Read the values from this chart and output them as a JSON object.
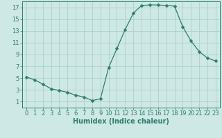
{
  "x": [
    0,
    1,
    2,
    3,
    4,
    5,
    6,
    7,
    8,
    9,
    10,
    11,
    12,
    13,
    14,
    15,
    16,
    17,
    18,
    19,
    20,
    21,
    22,
    23
  ],
  "y": [
    5.2,
    4.7,
    4.0,
    3.2,
    2.9,
    2.6,
    2.1,
    1.8,
    1.2,
    1.5,
    6.8,
    10.0,
    13.2,
    16.0,
    17.3,
    17.4,
    17.4,
    17.3,
    17.2,
    13.7,
    11.3,
    9.5,
    8.4,
    7.9
  ],
  "line_color": "#2e7d6d",
  "marker": "D",
  "marker_size": 2.5,
  "bg_color": "#cde8e5",
  "grid_color": "#aed0cb",
  "xlabel": "Humidex (Indice chaleur)",
  "xlim": [
    -0.5,
    23.5
  ],
  "ylim": [
    0,
    18
  ],
  "yticks": [
    1,
    3,
    5,
    7,
    9,
    11,
    13,
    15,
    17
  ],
  "xticks": [
    0,
    1,
    2,
    3,
    4,
    5,
    6,
    7,
    8,
    9,
    10,
    11,
    12,
    13,
    14,
    15,
    16,
    17,
    18,
    19,
    20,
    21,
    22,
    23
  ],
  "tick_color": "#2e7d6d",
  "label_fontsize": 7,
  "tick_fontsize": 6,
  "xlabel_fontsize": 7
}
